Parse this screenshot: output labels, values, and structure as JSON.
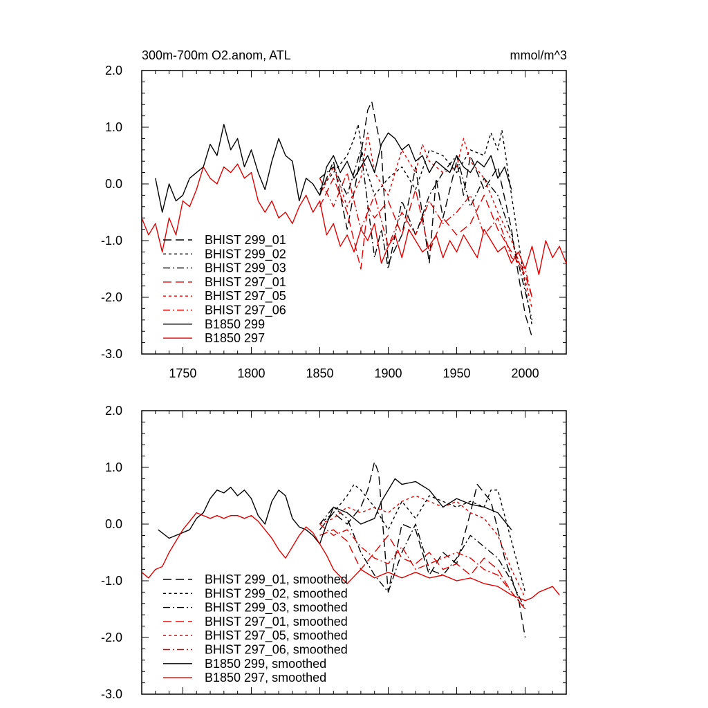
{
  "chart_data": [
    {
      "type": "line",
      "title": "300m-700m O2.anom, ATL",
      "units": "mmol/m^3",
      "xlim": [
        1720,
        2030
      ],
      "ylim": [
        -3.0,
        2.0
      ],
      "xticks": [
        1750,
        1800,
        1850,
        1900,
        1950,
        2000
      ],
      "xtick_labels": [
        "1750",
        "1800",
        "1850",
        "1900",
        "1950",
        "2000"
      ],
      "yticks": [
        2.0,
        1.0,
        0.0,
        -1.0,
        -2.0,
        -3.0
      ],
      "ytick_labels": [
        "2.0",
        "1.0",
        "0.0",
        "-1.0",
        "-2.0",
        "-3.0"
      ],
      "legend_position": "bottom-left",
      "series": [
        {
          "name": "BHIST 299_01",
          "color": "#000000",
          "dash": "long-dash",
          "x": [
            1850,
            1860,
            1870,
            1880,
            1885,
            1888,
            1890,
            1895,
            1900,
            1910,
            1920,
            1930,
            1935,
            1940,
            1950,
            1955,
            1960,
            1970,
            1980,
            1990,
            1995,
            2000,
            2005
          ],
          "y": [
            -0.2,
            0.4,
            -0.8,
            0.5,
            1.3,
            1.45,
            1.2,
            0.6,
            -1.4,
            -0.9,
            0.3,
            -1.4,
            0.1,
            -0.6,
            0.4,
            -0.2,
            0.5,
            -0.1,
            0.3,
            -0.8,
            -1.6,
            -2.3,
            -2.7
          ]
        },
        {
          "name": "BHIST 299_02",
          "color": "#000000",
          "dash": "short-dash",
          "x": [
            1850,
            1860,
            1870,
            1875,
            1878,
            1882,
            1890,
            1900,
            1910,
            1920,
            1930,
            1940,
            1950,
            1960,
            1970,
            1975,
            1980,
            1983,
            1990,
            1995,
            2000,
            2005
          ],
          "y": [
            -0.1,
            0.2,
            0.5,
            0.8,
            1.05,
            0.4,
            -0.2,
            0.1,
            0.3,
            -0.1,
            0.6,
            0.5,
            0.2,
            0.6,
            0.5,
            0.9,
            0.6,
            0.95,
            -0.2,
            -1.0,
            -1.8,
            -2.5
          ]
        },
        {
          "name": "BHIST 299_03",
          "color": "#000000",
          "dash": "dash-dot",
          "x": [
            1850,
            1860,
            1870,
            1880,
            1890,
            1895,
            1900,
            1910,
            1920,
            1930,
            1940,
            1950,
            1960,
            1970,
            1980,
            1990,
            2000,
            2005
          ],
          "y": [
            0.1,
            0.3,
            -0.2,
            0.6,
            -1.3,
            -0.8,
            -1.5,
            -0.3,
            -0.9,
            -0.2,
            0.2,
            0.5,
            -0.4,
            0.1,
            -0.2,
            -0.9,
            -1.9,
            -2.4
          ]
        },
        {
          "name": "BHIST 297_01",
          "color": "#e00000",
          "dash": "long-dash",
          "x": [
            1850,
            1860,
            1870,
            1880,
            1885,
            1890,
            1900,
            1910,
            1920,
            1930,
            1940,
            1950,
            1960,
            1970,
            1980,
            1990,
            2000,
            2005
          ],
          "y": [
            -0.4,
            0.1,
            -0.5,
            -1.5,
            -0.4,
            -0.6,
            -0.3,
            -0.9,
            -0.1,
            -1.2,
            -0.6,
            -0.9,
            -0.7,
            -0.2,
            -0.8,
            -1.2,
            -1.6,
            -2.0
          ]
        },
        {
          "name": "BHIST 297_05",
          "color": "#e00000",
          "dash": "short-dash",
          "x": [
            1850,
            1860,
            1870,
            1880,
            1885,
            1890,
            1900,
            1910,
            1920,
            1925,
            1930,
            1940,
            1950,
            1955,
            1960,
            1970,
            1980,
            1990,
            2000,
            2005
          ],
          "y": [
            -0.2,
            0.3,
            -0.4,
            0.1,
            0.9,
            0.2,
            -0.2,
            0.6,
            0.2,
            0.7,
            0.4,
            0.2,
            0.3,
            0.8,
            0.4,
            0.1,
            -0.5,
            -1.0,
            -1.7,
            -2.2
          ]
        },
        {
          "name": "BHIST 297_06",
          "color": "#e00000",
          "dash": "dash-dot",
          "x": [
            1850,
            1860,
            1870,
            1880,
            1890,
            1900,
            1910,
            1920,
            1930,
            1940,
            1950,
            1960,
            1970,
            1980,
            1990,
            2000,
            2005
          ],
          "y": [
            0.1,
            -0.4,
            0.2,
            -0.8,
            -0.2,
            -1.1,
            -0.5,
            -0.9,
            -0.3,
            -0.7,
            -0.5,
            -0.2,
            -0.9,
            -0.6,
            -1.3,
            -1.5,
            -2.0
          ]
        },
        {
          "name": "B1850 299",
          "color": "#000000",
          "dash": "solid",
          "x": [
            1730,
            1735,
            1740,
            1745,
            1750,
            1755,
            1760,
            1765,
            1770,
            1775,
            1780,
            1785,
            1790,
            1795,
            1800,
            1805,
            1810,
            1815,
            1820,
            1825,
            1830,
            1835,
            1840,
            1845,
            1850,
            1855,
            1860,
            1865,
            1870,
            1875,
            1880,
            1885,
            1890,
            1895,
            1900,
            1905,
            1910,
            1915,
            1920,
            1925,
            1930,
            1935,
            1940,
            1945,
            1950,
            1955,
            1960,
            1965,
            1970,
            1975,
            1980,
            1985,
            1990
          ],
          "y": [
            0.1,
            -0.5,
            0.0,
            -0.3,
            -0.2,
            0.1,
            0.2,
            0.3,
            0.7,
            0.5,
            1.05,
            0.6,
            0.8,
            0.3,
            0.6,
            0.2,
            -0.1,
            0.4,
            0.8,
            0.5,
            0.4,
            -0.3,
            0.1,
            0.0,
            -0.2,
            0.3,
            0.5,
            0.2,
            0.4,
            0.1,
            0.3,
            0.5,
            0.2,
            0.7,
            0.9,
            0.8,
            0.6,
            0.7,
            0.4,
            0.5,
            0.2,
            0.4,
            0.3,
            0.2,
            0.5,
            0.3,
            0.2,
            0.4,
            0.3,
            0.5,
            0.1,
            0.3,
            -0.1
          ]
        },
        {
          "name": "B1850 297",
          "color": "#e00000",
          "dash": "solid",
          "x": [
            1720,
            1725,
            1730,
            1735,
            1740,
            1745,
            1750,
            1755,
            1760,
            1765,
            1770,
            1775,
            1780,
            1785,
            1790,
            1795,
            1800,
            1805,
            1810,
            1815,
            1820,
            1825,
            1830,
            1835,
            1840,
            1845,
            1850,
            1855,
            1860,
            1865,
            1870,
            1875,
            1880,
            1885,
            1890,
            1895,
            1900,
            1905,
            1910,
            1915,
            1920,
            1925,
            1930,
            1935,
            1940,
            1945,
            1950,
            1955,
            1960,
            1965,
            1970,
            1975,
            1980,
            1985,
            1990,
            1995,
            2000,
            2005,
            2010,
            2015,
            2020,
            2025,
            2030
          ],
          "y": [
            -0.6,
            -0.9,
            -0.7,
            -1.2,
            -0.6,
            -0.9,
            -0.3,
            -0.4,
            -0.1,
            0.3,
            0.1,
            0.0,
            0.3,
            0.2,
            0.35,
            0.1,
            0.2,
            -0.3,
            -0.5,
            -0.3,
            -0.6,
            -0.5,
            -0.7,
            -0.4,
            -0.2,
            -0.5,
            -0.3,
            -0.9,
            -0.7,
            -1.1,
            -0.9,
            -1.2,
            -0.8,
            -1.0,
            -0.7,
            -1.4,
            -1.1,
            -0.9,
            -1.3,
            -0.8,
            -1.0,
            -1.2,
            -1.1,
            -0.9,
            -1.3,
            -1.0,
            -1.2,
            -0.9,
            -1.1,
            -1.3,
            -0.8,
            -1.0,
            -1.2,
            -1.1,
            -1.4,
            -1.2,
            -1.5,
            -1.1,
            -1.6,
            -1.0,
            -1.3,
            -1.1,
            -1.4
          ]
        }
      ]
    },
    {
      "type": "line",
      "title": "",
      "units": "",
      "xlim": [
        1720,
        2030
      ],
      "ylim": [
        -3.0,
        2.0
      ],
      "xticks": [
        1750,
        1800,
        1850,
        1900,
        1950,
        2000
      ],
      "xtick_labels": [],
      "yticks": [
        2.0,
        1.0,
        0.0,
        -1.0,
        -2.0,
        -3.0
      ],
      "ytick_labels": [
        "2.0",
        "1.0",
        "0.0",
        "-1.0",
        "-2.0",
        "-3.0"
      ],
      "legend_position": "bottom-center",
      "series": [
        {
          "name": "BHIST 299_01, smoothed",
          "color": "#000000",
          "dash": "long-dash",
          "x": [
            1850,
            1860,
            1870,
            1880,
            1885,
            1890,
            1893,
            1900,
            1910,
            1920,
            1930,
            1940,
            1950,
            1960,
            1965,
            1975,
            1985,
            1995,
            2000
          ],
          "y": [
            -0.1,
            0.2,
            0.0,
            0.3,
            0.6,
            1.1,
            0.9,
            -1.2,
            0.0,
            -0.1,
            -0.9,
            -0.5,
            -0.7,
            0.2,
            0.7,
            0.4,
            -0.6,
            -1.3,
            -2.0
          ]
        },
        {
          "name": "BHIST 299_02, smoothed",
          "color": "#000000",
          "dash": "short-dash",
          "x": [
            1850,
            1860,
            1870,
            1875,
            1880,
            1890,
            1900,
            1910,
            1920,
            1930,
            1940,
            1950,
            1960,
            1970,
            1975,
            1980,
            1990,
            2000
          ],
          "y": [
            0.0,
            0.2,
            0.5,
            0.7,
            0.6,
            0.3,
            -0.1,
            0.4,
            0.1,
            0.5,
            0.4,
            0.3,
            0.4,
            0.3,
            0.6,
            0.6,
            -0.3,
            -1.2
          ]
        },
        {
          "name": "BHIST 299_03, smoothed",
          "color": "#000000",
          "dash": "dash-dot",
          "x": [
            1850,
            1860,
            1870,
            1880,
            1890,
            1900,
            1910,
            1920,
            1930,
            1940,
            1950,
            1960,
            1970,
            1980,
            1990,
            2000
          ],
          "y": [
            0.0,
            0.3,
            0.1,
            -0.5,
            -0.9,
            -1.2,
            -0.5,
            0.0,
            -0.8,
            -0.9,
            -0.6,
            -0.2,
            -0.4,
            -0.6,
            -1.0,
            -1.5
          ]
        },
        {
          "name": "BHIST 297_01, smoothed",
          "color": "#e00000",
          "dash": "long-dash",
          "x": [
            1850,
            1860,
            1870,
            1880,
            1890,
            1900,
            1910,
            1920,
            1930,
            1940,
            1950,
            1960,
            1970,
            1980,
            1990,
            2000
          ],
          "y": [
            -0.2,
            -0.1,
            -0.3,
            -0.8,
            -0.5,
            -0.2,
            -0.6,
            -0.7,
            -0.5,
            -0.8,
            -0.7,
            -0.9,
            -0.6,
            -0.8,
            -1.2,
            -1.5
          ]
        },
        {
          "name": "BHIST 297_05, smoothed",
          "color": "#e00000",
          "dash": "short-dash",
          "x": [
            1850,
            1860,
            1870,
            1880,
            1890,
            1900,
            1910,
            1920,
            1930,
            1940,
            1950,
            1960,
            1970,
            1980,
            1990,
            2000
          ],
          "y": [
            0.0,
            0.1,
            0.3,
            0.2,
            0.3,
            0.2,
            0.4,
            0.5,
            0.4,
            0.3,
            0.4,
            0.2,
            0.1,
            -0.2,
            -0.8,
            -1.3
          ]
        },
        {
          "name": "BHIST 297_06, smoothed",
          "color": "#e00000",
          "dash": "dash-dot",
          "x": [
            1850,
            1860,
            1870,
            1880,
            1890,
            1900,
            1910,
            1920,
            1930,
            1940,
            1950,
            1960,
            1970,
            1980,
            1990,
            2000
          ],
          "y": [
            0.0,
            -0.2,
            -0.1,
            -0.4,
            -0.6,
            -0.7,
            -0.4,
            -0.8,
            -0.7,
            -0.6,
            -0.5,
            -0.6,
            -0.8,
            -0.9,
            -1.2,
            -1.5
          ]
        },
        {
          "name": "B1850 299, smoothed",
          "color": "#000000",
          "dash": "solid",
          "x": [
            1732,
            1740,
            1745,
            1750,
            1755,
            1760,
            1765,
            1770,
            1775,
            1780,
            1785,
            1790,
            1795,
            1800,
            1805,
            1810,
            1815,
            1820,
            1825,
            1830,
            1835,
            1840,
            1845,
            1850,
            1855,
            1860,
            1870,
            1880,
            1890,
            1895,
            1900,
            1905,
            1910,
            1920,
            1930,
            1940,
            1950,
            1960,
            1970,
            1980,
            1990
          ],
          "y": [
            -0.1,
            -0.25,
            -0.2,
            -0.15,
            -0.1,
            0.1,
            0.2,
            0.45,
            0.6,
            0.55,
            0.65,
            0.5,
            0.6,
            0.45,
            0.15,
            0.0,
            0.4,
            0.6,
            0.5,
            0.1,
            -0.05,
            -0.1,
            -0.2,
            -0.35,
            0.0,
            0.3,
            0.2,
            0.0,
            0.1,
            0.4,
            0.6,
            0.8,
            0.7,
            0.75,
            0.6,
            0.3,
            0.45,
            0.35,
            0.3,
            0.2,
            -0.1
          ]
        },
        {
          "name": "B1850 297, smoothed",
          "color": "#e00000",
          "dash": "solid",
          "x": [
            1720,
            1725,
            1730,
            1735,
            1740,
            1745,
            1750,
            1755,
            1760,
            1765,
            1770,
            1775,
            1780,
            1785,
            1790,
            1795,
            1800,
            1805,
            1810,
            1815,
            1820,
            1825,
            1830,
            1835,
            1840,
            1845,
            1850,
            1855,
            1860,
            1870,
            1880,
            1890,
            1900,
            1910,
            1920,
            1930,
            1940,
            1950,
            1960,
            1970,
            1980,
            1990,
            2000,
            2005,
            2010,
            2015,
            2020,
            2025
          ],
          "y": [
            -0.85,
            -0.95,
            -0.8,
            -0.75,
            -0.5,
            -0.3,
            -0.1,
            0.05,
            0.2,
            0.15,
            0.1,
            0.15,
            0.1,
            0.15,
            0.15,
            0.1,
            0.15,
            0.05,
            -0.1,
            -0.25,
            -0.45,
            -0.6,
            -0.4,
            -0.2,
            -0.05,
            -0.15,
            -0.35,
            -0.55,
            -0.8,
            -1.05,
            -0.8,
            -0.95,
            -0.85,
            -0.95,
            -0.85,
            -0.95,
            -0.9,
            -1.0,
            -0.95,
            -1.05,
            -1.1,
            -1.25,
            -1.35,
            -1.3,
            -1.2,
            -1.15,
            -1.1,
            -1.25
          ]
        }
      ]
    }
  ]
}
